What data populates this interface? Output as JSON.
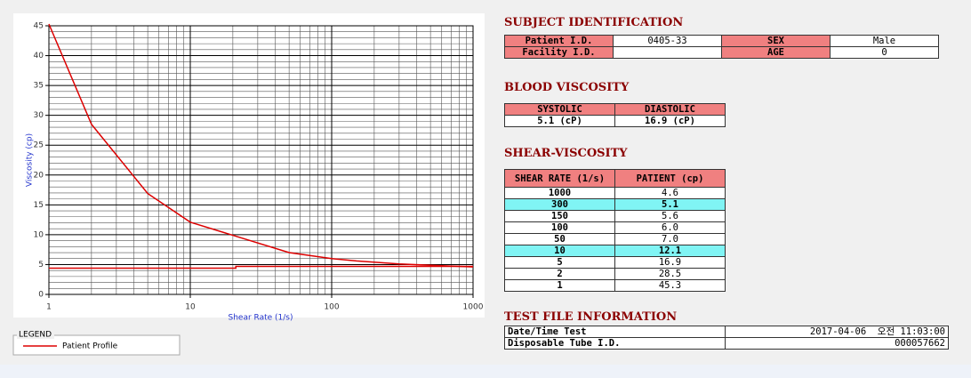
{
  "chart_data": {
    "type": "line",
    "x_label": "Shear Rate (1/s)",
    "y_label": "Viscosity (cp)",
    "xlim": [
      1,
      1000
    ],
    "ylim": [
      0,
      45
    ],
    "xticks": [
      1,
      10,
      100,
      1000
    ],
    "yticks": [
      0,
      5,
      10,
      15,
      20,
      25,
      30,
      35,
      40,
      45
    ],
    "log_x": true,
    "grid": true,
    "minor_grid": true,
    "legend_title": "LEGEND",
    "series": [
      {
        "name": "Patient Profile",
        "color": "#dd0000",
        "x": [
          1,
          2,
          5,
          10,
          50,
          100,
          150,
          300,
          1000
        ],
        "values": [
          45.3,
          28.5,
          16.9,
          12.1,
          7.0,
          6.0,
          5.6,
          5.1,
          4.6
        ]
      },
      {
        "color": "#dd0000",
        "x": [
          1,
          21,
          21,
          1000
        ],
        "values": [
          4.4,
          4.4,
          4.7,
          4.7
        ]
      }
    ]
  },
  "subject": {
    "title": "SUBJECT IDENTIFICATION",
    "rows": [
      [
        "Patient I.D.",
        "0405-33",
        "SEX",
        "Male"
      ],
      [
        "Facility I.D.",
        null,
        "AGE",
        "0"
      ]
    ]
  },
  "blood": {
    "title": "BLOOD VISCOSITY",
    "headers": [
      "SYSTOLIC",
      "DIASTOLIC"
    ],
    "values": [
      "5.1 (cP)",
      "16.9 (cP)"
    ]
  },
  "shear": {
    "title": "SHEAR-VISCOSITY",
    "headers": [
      "SHEAR RATE (1/s)",
      "PATIENT (cp)"
    ],
    "highlighted": [
      1,
      5
    ],
    "rows": [
      [
        "1000",
        "4.6"
      ],
      [
        "300",
        "5.1"
      ],
      [
        "150",
        "5.6"
      ],
      [
        "100",
        "6.0"
      ],
      [
        "50",
        "7.0"
      ],
      [
        "10",
        "12.1"
      ],
      [
        "5",
        "16.9"
      ],
      [
        "2",
        "28.5"
      ],
      [
        "1",
        "45.3"
      ]
    ]
  },
  "test_file": {
    "title": "TEST FILE INFORMATION",
    "rows": [
      [
        "Date/Time Test",
        "2017-04-06  오전 11:03:00"
      ],
      [
        "Disposable Tube I.D.",
        "000057662"
      ]
    ]
  }
}
